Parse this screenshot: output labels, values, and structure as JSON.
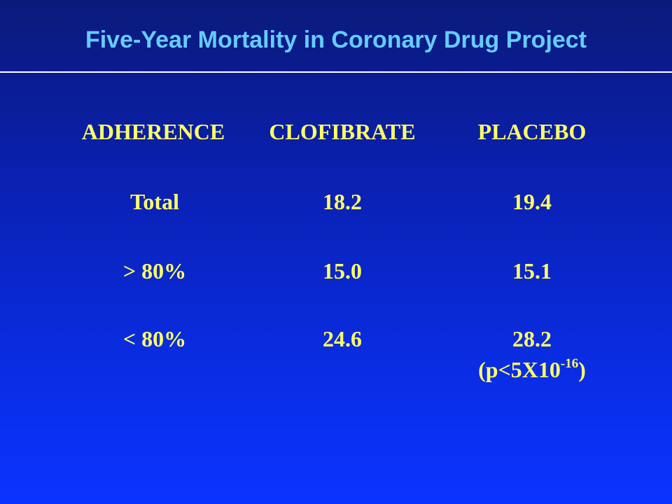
{
  "slide": {
    "title": "Five-Year Mortality in Coronary Drug Project"
  },
  "table": {
    "headers": [
      "ADHERENCE",
      "CLOFIBRATE",
      "PLACEBO"
    ],
    "rows": [
      [
        "Total",
        "18.2",
        "19.4"
      ],
      [
        "> 80%",
        "15.0",
        "15.1"
      ],
      [
        "< 80%",
        "24.6",
        "28.2"
      ]
    ],
    "note": {
      "prefix": "(p<5X10",
      "exponent": "-16",
      "suffix": ")"
    }
  },
  "colors": {
    "title": "#66ccff",
    "table_text": "#ffff66",
    "rule": "#ffffff"
  }
}
